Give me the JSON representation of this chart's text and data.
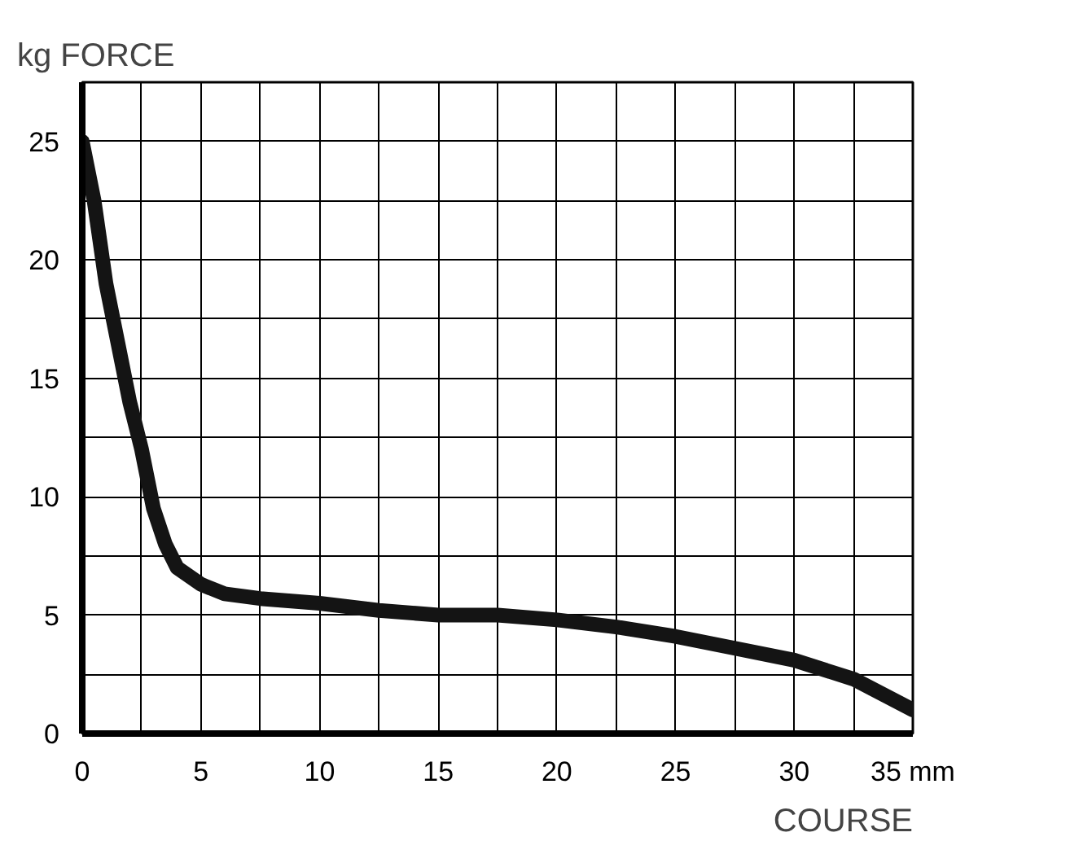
{
  "chart_data": {
    "type": "line",
    "ylabel": "kg  FORCE",
    "xlabel": "COURSE",
    "x": [
      0,
      0.5,
      1,
      1.5,
      2,
      2.5,
      3,
      3.5,
      4,
      5,
      6,
      7.5,
      10,
      12.5,
      15,
      17.5,
      20,
      22.5,
      25,
      27.5,
      30,
      32.5,
      35
    ],
    "series": [
      {
        "color": "#141414",
        "values": [
          25,
          22.5,
          19,
          16.5,
          14,
          12,
          9.5,
          8,
          7,
          6.3,
          5.9,
          5.7,
          5.5,
          5.2,
          5.0,
          5.0,
          4.8,
          4.5,
          4.1,
          3.6,
          3.1,
          2.3,
          1.0
        ]
      }
    ],
    "xlim": [
      0,
      35
    ],
    "ylim": [
      0,
      27.5
    ],
    "xticks": [
      0,
      {
        "value": 2.5,
        "label": null
      },
      5,
      {
        "value": 7.5,
        "label": null
      },
      10,
      {
        "value": 12.5,
        "label": null
      },
      15,
      {
        "value": 17.5,
        "label": null
      },
      20,
      {
        "value": 22.5,
        "label": null
      },
      25,
      {
        "value": 27.5,
        "label": null
      },
      30,
      {
        "value": 32.5,
        "label": null
      },
      {
        "value": 35,
        "label": "35 mm"
      }
    ],
    "yticks": [
      0,
      {
        "value": 2.5,
        "label": null
      },
      5,
      {
        "value": 7.5,
        "label": null
      },
      10,
      {
        "value": 12.5,
        "label": null
      },
      15,
      {
        "value": 17.5,
        "label": null
      },
      20,
      {
        "value": 22.5,
        "label": null
      },
      25,
      {
        "value": 27.5,
        "label": null
      }
    ],
    "grid": true,
    "marker": "none",
    "line_style": "solid"
  }
}
